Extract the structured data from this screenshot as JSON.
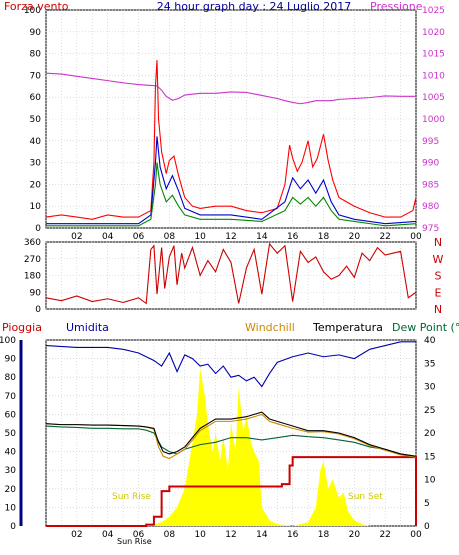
{
  "chart_data": [
    {
      "type": "line",
      "title": "24 hour graph day : 24 Luglio 2017",
      "left_label": "Forza vento",
      "right_label": "Pressione",
      "x_ticks": [
        "02",
        "04",
        "06",
        "08",
        "10",
        "12",
        "14",
        "16",
        "18",
        "20",
        "22",
        "00"
      ],
      "x_range": [
        0,
        24
      ],
      "y_left_ticks": [
        0,
        10,
        20,
        30,
        40,
        50,
        60,
        70,
        80,
        90,
        100
      ],
      "y_right_ticks": [
        975,
        980,
        985,
        990,
        995,
        1000,
        1005,
        1010,
        1015,
        1020,
        1025
      ],
      "ylim_left": [
        0,
        100
      ],
      "ylim_right": [
        975,
        1025
      ],
      "grid": true,
      "series": [
        {
          "axis": "right",
          "color": "#cc33cc",
          "style": "line",
          "x": [
            0,
            1,
            2,
            3,
            4,
            5,
            6,
            6.8,
            7.2,
            7.5,
            7.8,
            8.2,
            8.6,
            9,
            10,
            11,
            12,
            13,
            14,
            15,
            15.5,
            16,
            16.5,
            17,
            17.5,
            18,
            18.5,
            19,
            20,
            21,
            22,
            23,
            24
          ],
          "y": [
            1010.5,
            1010.3,
            1009.8,
            1009.3,
            1008.8,
            1008.3,
            1007.9,
            1007.7,
            1007.6,
            1006.6,
            1005.2,
            1004.3,
            1004.7,
            1005.5,
            1005.9,
            1005.9,
            1006.2,
            1006.1,
            1005.4,
            1004.7,
            1004.2,
            1003.8,
            1003.5,
            1003.8,
            1004.2,
            1004.2,
            1004.2,
            1004.5,
            1004.7,
            1004.9,
            1005.3,
            1005.2,
            1005.2
          ]
        },
        {
          "axis": "left",
          "color": "#ff0000",
          "style": "line",
          "x": [
            0,
            1,
            2,
            3,
            4,
            5,
            6,
            6.8,
            7.0,
            7.1,
            7.2,
            7.3,
            7.5,
            7.8,
            8.0,
            8.3,
            8.6,
            9,
            9.5,
            10,
            11,
            12,
            13,
            14,
            15,
            15.5,
            15.8,
            16.0,
            16.3,
            16.6,
            17,
            17.3,
            17.6,
            18,
            18.3,
            18.6,
            19,
            20,
            21,
            22,
            23,
            23.8,
            24
          ],
          "y": [
            5,
            6,
            5,
            4,
            6,
            5,
            5,
            8,
            30,
            65,
            77,
            50,
            35,
            25,
            31,
            33,
            24,
            14,
            10,
            9,
            10,
            10,
            8,
            7,
            9,
            20,
            38,
            32,
            26,
            30,
            40,
            28,
            32,
            43,
            31,
            22,
            14,
            10,
            7,
            5,
            5,
            8,
            14
          ]
        },
        {
          "axis": "left",
          "color": "#0000cc",
          "style": "line",
          "x": [
            0,
            2,
            4,
            6,
            6.8,
            7.1,
            7.2,
            7.4,
            7.8,
            8.2,
            8.6,
            9,
            10,
            12,
            14,
            15.5,
            16,
            16.5,
            17,
            17.5,
            18,
            18.5,
            19,
            20,
            22,
            24
          ],
          "y": [
            2,
            2,
            2,
            2,
            6,
            30,
            42,
            28,
            18,
            24,
            17,
            9,
            6,
            6,
            4,
            12,
            23,
            18,
            22,
            16,
            22,
            12,
            6,
            4,
            2,
            3
          ]
        },
        {
          "axis": "left",
          "color": "#008800",
          "style": "line",
          "x": [
            0,
            2,
            4,
            6,
            6.8,
            7.1,
            7.2,
            7.4,
            7.8,
            8.2,
            8.6,
            9,
            10,
            12,
            14,
            15.5,
            16,
            16.5,
            17,
            17.5,
            18,
            18.5,
            19,
            20,
            22,
            24
          ],
          "y": [
            1,
            1,
            1,
            1,
            4,
            20,
            30,
            20,
            12,
            15,
            10,
            6,
            4,
            4,
            3,
            8,
            14,
            11,
            14,
            10,
            14,
            8,
            4,
            3,
            1,
            2
          ]
        }
      ]
    },
    {
      "type": "line",
      "y_ticks": [
        0,
        90,
        180,
        270,
        360
      ],
      "direction_labels": [
        "N",
        "W",
        "S",
        "E",
        "N"
      ],
      "ylim": [
        0,
        360
      ],
      "x_range": [
        0,
        24
      ],
      "grid": true,
      "series": [
        {
          "color": "#cc0000",
          "style": "line",
          "x": [
            0,
            1,
            2,
            3,
            4,
            5,
            6,
            6.5,
            6.8,
            7.0,
            7.2,
            7.5,
            7.7,
            8.0,
            8.3,
            8.5,
            8.8,
            9,
            9.5,
            10,
            10.5,
            11,
            11.5,
            12,
            12.5,
            13,
            13.5,
            14,
            14.5,
            15,
            15.5,
            16,
            16.5,
            17,
            17.5,
            18,
            18.5,
            19,
            19.5,
            20,
            20.5,
            21,
            21.5,
            22,
            22.5,
            23,
            23.5,
            24
          ],
          "y": [
            60,
            45,
            70,
            40,
            55,
            35,
            60,
            30,
            320,
            340,
            80,
            330,
            110,
            280,
            340,
            130,
            300,
            220,
            330,
            180,
            260,
            200,
            320,
            250,
            30,
            220,
            320,
            80,
            350,
            300,
            340,
            40,
            310,
            250,
            280,
            200,
            160,
            180,
            230,
            170,
            300,
            260,
            330,
            290,
            300,
            310,
            60,
            90
          ]
        }
      ]
    },
    {
      "type": "line",
      "legend": [
        "Pioggia",
        "Umidita",
        "Windchill",
        "Temperatura",
        "Dew Point (°C"
      ],
      "x_ticks": [
        "02",
        "04",
        "06",
        "08",
        "10",
        "12",
        "14",
        "16",
        "18",
        "20",
        "22",
        "00"
      ],
      "x_range": [
        0,
        24
      ],
      "y_left_ticks": [
        0,
        10,
        20,
        30,
        40,
        50,
        60,
        70,
        80,
        90,
        100
      ],
      "y_right_ticks": [
        0,
        5,
        10,
        15,
        20,
        25,
        30,
        35,
        40
      ],
      "ylim_left": [
        0,
        100
      ],
      "ylim_right": [
        0,
        40
      ],
      "annotations": [
        "Sun Rise",
        "Sun Set",
        "Sun Rise"
      ],
      "grid": true,
      "series": [
        {
          "name": "Umidita",
          "axis": "left",
          "color": "#0000aa",
          "style": "line",
          "x": [
            0,
            2,
            4,
            5,
            6,
            6.5,
            7,
            7.5,
            8,
            8.5,
            9,
            9.5,
            10,
            10.5,
            11,
            11.5,
            12,
            12.5,
            13,
            13.5,
            14,
            14.5,
            15,
            16,
            17,
            18,
            19,
            20,
            21,
            22,
            23,
            24
          ],
          "y": [
            97,
            96,
            96,
            95,
            93,
            91,
            89,
            86,
            93,
            83,
            92,
            90,
            86,
            87,
            82,
            86,
            80,
            81,
            78,
            80,
            75,
            82,
            88,
            91,
            93,
            91,
            92,
            90,
            95,
            97,
            99,
            99
          ]
        },
        {
          "name": "Temperatura",
          "axis": "right",
          "color": "#000000",
          "style": "line",
          "x": [
            0,
            1,
            2,
            3,
            4,
            5,
            6,
            6.5,
            7,
            7.3,
            7.6,
            8,
            8.5,
            9,
            9.5,
            10,
            10.5,
            11,
            12,
            13,
            13.5,
            14,
            14.5,
            15,
            16,
            17,
            18,
            19,
            20,
            21,
            22,
            23,
            24
          ],
          "y": [
            22,
            21.8,
            21.8,
            21.7,
            21.7,
            21.6,
            21.5,
            21.3,
            21,
            18,
            16,
            15.5,
            16,
            17,
            19,
            21,
            22,
            23,
            23,
            23.5,
            24,
            24.5,
            23,
            22.5,
            21.5,
            20.5,
            20.5,
            20,
            19,
            17.5,
            16.5,
            15.5,
            15
          ]
        },
        {
          "name": "Windchill",
          "axis": "right",
          "color": "#cc8800",
          "style": "line",
          "x": [
            0,
            1,
            2,
            3,
            4,
            5,
            6,
            6.5,
            7,
            7.3,
            7.6,
            8,
            8.5,
            9,
            9.5,
            10,
            10.5,
            11,
            12,
            13,
            13.5,
            14,
            14.5,
            15,
            16,
            17,
            18,
            19,
            20,
            21,
            22,
            23,
            24
          ],
          "y": [
            22,
            21.8,
            21.8,
            21.7,
            21.7,
            21.6,
            21.5,
            21.3,
            20.8,
            17,
            15,
            14.5,
            15.5,
            16.5,
            18.5,
            20.5,
            21.5,
            22.5,
            22.5,
            23,
            23.5,
            24,
            22.5,
            22,
            21,
            20.2,
            20.3,
            19.8,
            18.8,
            17.3,
            16.3,
            15.3,
            14.8
          ]
        },
        {
          "name": "Dew Point (°C",
          "axis": "right",
          "color": "#006633",
          "style": "line",
          "x": [
            0,
            1,
            2,
            3,
            4,
            5,
            6,
            6.5,
            7,
            7.5,
            8,
            8.5,
            9,
            10,
            11,
            12,
            13,
            14,
            15,
            16,
            17,
            18,
            19,
            20,
            21,
            22,
            23,
            24
          ],
          "y": [
            21.5,
            21.3,
            21.2,
            21,
            21,
            20.9,
            20.9,
            20.6,
            20,
            17,
            16,
            15.5,
            16.5,
            17.5,
            18,
            19,
            19,
            18.5,
            19,
            19.5,
            19.2,
            19,
            18.5,
            18,
            17,
            16.5,
            15.5,
            15
          ]
        },
        {
          "name": "Pioggia",
          "axis": "right",
          "color": "#cc0000",
          "style": "step",
          "x": [
            0,
            6,
            6.5,
            7,
            7.5,
            8,
            15,
            15.3,
            15.8,
            16,
            24,
            24
          ],
          "y": [
            0,
            0,
            0.3,
            2,
            7.5,
            8.5,
            8.5,
            9,
            13,
            14.8,
            14.8,
            0
          ]
        },
        {
          "name": "Solar",
          "axis": "left",
          "color": "#ffff00",
          "style": "area",
          "x": [
            6,
            7,
            7.5,
            8,
            8.5,
            9,
            9.5,
            9.8,
            10,
            10.3,
            10.5,
            10.8,
            11,
            11.3,
            11.5,
            11.8,
            12,
            12.3,
            12.5,
            12.8,
            13,
            13.3,
            13.5,
            13.8,
            14,
            14.5,
            15,
            16,
            17,
            17.5,
            17.8,
            18,
            18.3,
            18.6,
            19,
            19.3,
            19.6,
            20,
            20.5,
            21,
            22,
            24
          ],
          "y": [
            0,
            1,
            2,
            5,
            10,
            20,
            45,
            60,
            85,
            70,
            55,
            40,
            50,
            35,
            48,
            30,
            55,
            40,
            75,
            50,
            60,
            45,
            40,
            35,
            10,
            3,
            1,
            0,
            2,
            10,
            30,
            35,
            20,
            25,
            15,
            18,
            8,
            3,
            1,
            0,
            0,
            0
          ]
        }
      ]
    }
  ]
}
